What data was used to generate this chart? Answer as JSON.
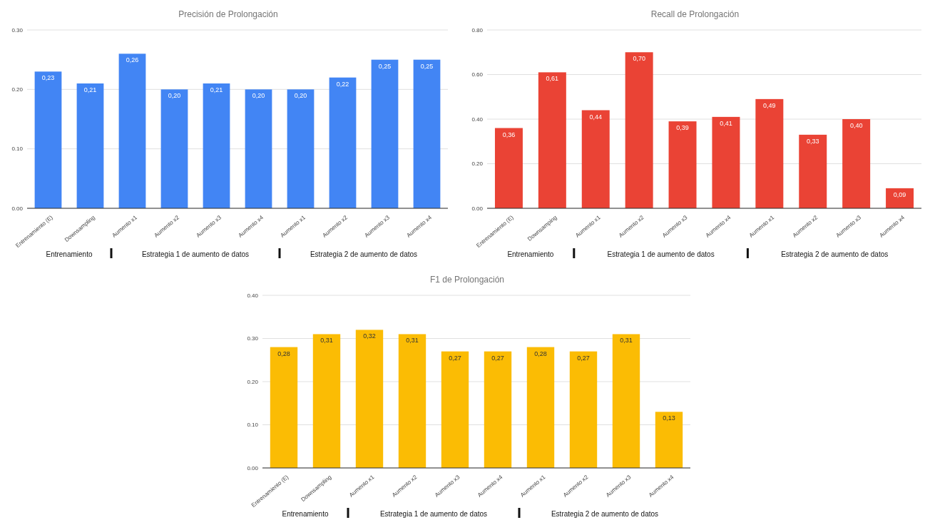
{
  "chart_data": [
    {
      "type": "bar",
      "title": "Precisión de Prolongación",
      "categories": [
        "Entrenamiento (E)",
        "Downsampling",
        "Aumento x1",
        "Aumento x2",
        "Aumento x3",
        "Aumento x4",
        "Aumento x1",
        "Aumento x2",
        "Aumento x3",
        "Aumento x4"
      ],
      "values": [
        0.23,
        0.21,
        0.26,
        0.2,
        0.21,
        0.2,
        0.2,
        0.22,
        0.25,
        0.25
      ],
      "value_labels": [
        "0,23",
        "0,21",
        "0,26",
        "0,20",
        "0,21",
        "0,20",
        "0,20",
        "0,22",
        "0,25",
        "0,25"
      ],
      "color": "#4285f4",
      "ylim": [
        0,
        0.3
      ],
      "yticks": [
        {
          "value": 0,
          "label": "0.00"
        },
        {
          "value": 0.1,
          "label": "0.10"
        },
        {
          "value": 0.2,
          "label": "0.20"
        },
        {
          "value": 0.3,
          "label": "0.30"
        }
      ],
      "grid": "y",
      "annotations": [
        "Entrenamiento",
        "Estrategia 1 de aumento de datos",
        "Estrategia 2 de aumento de datos"
      ]
    },
    {
      "type": "bar",
      "title": "Recall de Prolongación",
      "categories": [
        "Entrenamiento (E)",
        "Downsamping",
        "Aumento x1",
        "Aumento x2",
        "Aumento x3",
        "Aumento x4",
        "Aumento x1",
        "Aumento x2",
        "Aumento x3",
        "Aumento x4"
      ],
      "values": [
        0.36,
        0.61,
        0.44,
        0.7,
        0.39,
        0.41,
        0.49,
        0.33,
        0.4,
        0.09
      ],
      "value_labels": [
        "0,36",
        "0,61",
        "0,44",
        "0,70",
        "0,39",
        "0,41",
        "0,49",
        "0,33",
        "0,40",
        "0,09"
      ],
      "color": "#ea4335",
      "ylim": [
        0,
        0.8
      ],
      "yticks": [
        {
          "value": 0,
          "label": "0.00"
        },
        {
          "value": 0.2,
          "label": "0.20"
        },
        {
          "value": 0.4,
          "label": "0.40"
        },
        {
          "value": 0.6,
          "label": "0.60"
        },
        {
          "value": 0.8,
          "label": "0.80"
        }
      ],
      "grid": "y",
      "annotations": [
        "Entrenamiento",
        "Estrategia 1 de aumento de datos",
        "Estrategia 2 de aumento de datos"
      ]
    },
    {
      "type": "bar",
      "title": "F1 de Prolongación",
      "categories": [
        "Entrenamiento (E)",
        "Downsampling",
        "Aumento x1",
        "Aumento x2",
        "Aumento x3",
        "Aumento x4",
        "Aumento x1",
        "Aumento x2",
        "Aumento x3",
        "Aumento x4"
      ],
      "values": [
        0.28,
        0.31,
        0.32,
        0.31,
        0.27,
        0.27,
        0.28,
        0.27,
        0.31,
        0.13
      ],
      "value_labels": [
        "0,28",
        "0,31",
        "0,32",
        "0,31",
        "0,27",
        "0,27",
        "0,28",
        "0,27",
        "0,31",
        "0,13"
      ],
      "color": "#fbbc04",
      "ylim": [
        0,
        0.4
      ],
      "yticks": [
        {
          "value": 0,
          "label": "0.00"
        },
        {
          "value": 0.1,
          "label": "0.10"
        },
        {
          "value": 0.2,
          "label": "0.20"
        },
        {
          "value": 0.3,
          "label": "0.30"
        },
        {
          "value": 0.4,
          "label": "0.40"
        }
      ],
      "grid": "y",
      "annotations": [
        "Entrenamiento",
        "Estrategia 1 de aumento de datos",
        "Estrategia 2 de aumento de datos"
      ]
    }
  ]
}
